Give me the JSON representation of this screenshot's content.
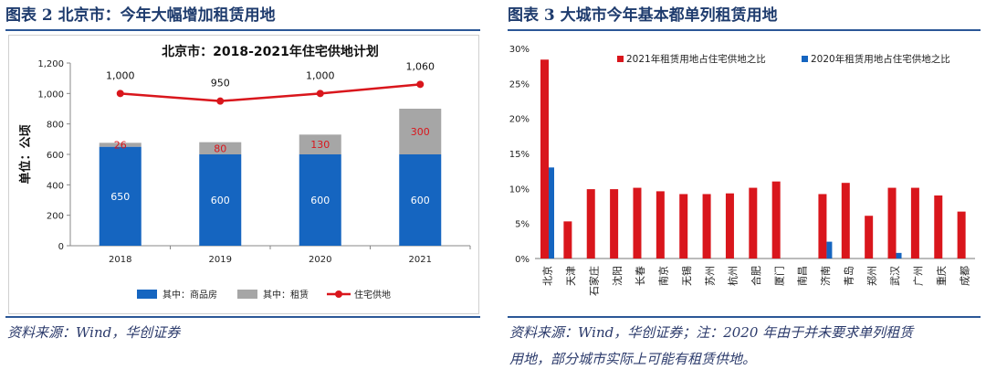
{
  "left": {
    "figure_title": "图表 2 北京市：今年大幅增加租赁用地",
    "source": "资料来源：Wind，华创证券"
  },
  "right": {
    "figure_title": "图表 3 大城市今年基本都单列租赁用地",
    "source_line1": "资料来源：Wind，华创证券；注：2020 年由于并未要求单列租赁",
    "source_line2": "用地，部分城市实际上可能有租赁供地。"
  },
  "colors": {
    "blue": "#1565c0",
    "gray": "#a6a6a6",
    "red": "#d9161c",
    "accent": "#2b5797"
  },
  "chart_data": [
    {
      "type": "bar",
      "title": "北京市：2018-2021年住宅供地计划",
      "ylabel": "单位：公顷",
      "ylim": [
        0,
        1200
      ],
      "yticks": [
        0,
        200,
        400,
        600,
        800,
        1000,
        1200
      ],
      "ytick_labels": [
        "0",
        "200",
        "400",
        "600",
        "800",
        "1,000",
        "1,200"
      ],
      "categories": [
        "2018",
        "2019",
        "2020",
        "2021"
      ],
      "series": [
        {
          "name": "其中：商品房",
          "kind": "bar-stack",
          "values": [
            650,
            600,
            600,
            600
          ],
          "labels": [
            "650",
            "600",
            "600",
            "600"
          ]
        },
        {
          "name": "其中：租赁",
          "kind": "bar-stack",
          "values": [
            26,
            80,
            130,
            300
          ],
          "labels": [
            "26",
            "80",
            "130",
            "300"
          ]
        },
        {
          "name": "住宅供地",
          "kind": "line",
          "values": [
            1000,
            950,
            1000,
            1060
          ],
          "labels": [
            "1,000",
            "950",
            "1,000",
            "1,060"
          ]
        }
      ]
    },
    {
      "type": "bar",
      "ylim": [
        0,
        30
      ],
      "yticks": [
        0,
        5,
        10,
        15,
        20,
        25,
        30
      ],
      "ytick_labels": [
        "0%",
        "5%",
        "10%",
        "15%",
        "20%",
        "25%",
        "30%"
      ],
      "categories": [
        "北京",
        "天津",
        "石家庄",
        "沈阳",
        "长春",
        "南京",
        "无锡",
        "苏州",
        "杭州",
        "合肥",
        "厦门",
        "南昌",
        "济南",
        "青岛",
        "郑州",
        "武汉",
        "广州",
        "重庆",
        "成都"
      ],
      "series": [
        {
          "name": "2021年租赁用地占住宅供地之比",
          "values": [
            28.4,
            5.3,
            9.9,
            9.9,
            10.1,
            9.6,
            9.2,
            9.2,
            9.3,
            10.1,
            11.0,
            0,
            9.2,
            10.8,
            6.1,
            10.1,
            10.1,
            9.0,
            6.7
          ]
        },
        {
          "name": "2020年租赁用地占住宅供地之比",
          "values": [
            13.0,
            0,
            0,
            0,
            0,
            0,
            0,
            0,
            0,
            0,
            0,
            0,
            2.4,
            0,
            0,
            0.8,
            0,
            0,
            0
          ]
        }
      ]
    }
  ]
}
